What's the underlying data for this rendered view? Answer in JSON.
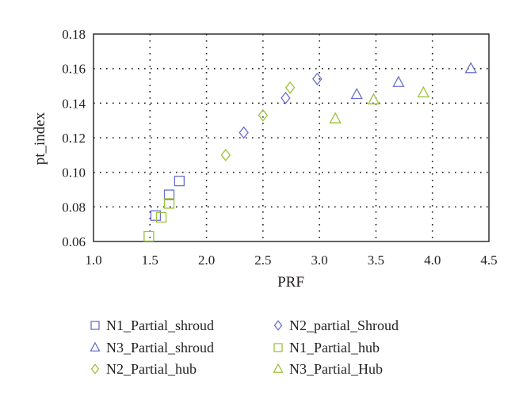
{
  "chart_data": {
    "type": "scatter",
    "xlabel": "PRF",
    "ylabel": "pt_index",
    "xlim": [
      1.0,
      4.5
    ],
    "ylim": [
      0.06,
      0.18
    ],
    "x_ticks": [
      "1.0",
      "1.5",
      "2.0",
      "2.5",
      "3.0",
      "3.5",
      "4.0",
      "4.5"
    ],
    "y_ticks": [
      "0.06",
      "0.08",
      "0.10",
      "0.12",
      "0.14",
      "0.16",
      "0.18"
    ],
    "grid": true,
    "legend_position": "bottom",
    "series": [
      {
        "name": "N1_Partial_shroud",
        "marker": "square",
        "color": "#6a6ecf",
        "points": [
          [
            1.55,
            0.075
          ],
          [
            1.67,
            0.087
          ],
          [
            1.76,
            0.095
          ]
        ]
      },
      {
        "name": "N2_partial_Shroud",
        "marker": "diamond",
        "color": "#6a6ecf",
        "points": [
          [
            2.33,
            0.123
          ],
          [
            2.7,
            0.143
          ],
          [
            2.98,
            0.154
          ]
        ]
      },
      {
        "name": "N3_Partial_shroud",
        "marker": "triangle",
        "color": "#6a6ecf",
        "points": [
          [
            3.33,
            0.145
          ],
          [
            3.7,
            0.152
          ],
          [
            4.34,
            0.16
          ]
        ]
      },
      {
        "name": "N1_Partial_hub",
        "marker": "square",
        "color": "#9cc23a",
        "points": [
          [
            1.49,
            0.063
          ],
          [
            1.6,
            0.074
          ],
          [
            1.67,
            0.082
          ]
        ]
      },
      {
        "name": "N2_Partial_hub",
        "marker": "diamond",
        "color": "#9cc23a",
        "points": [
          [
            2.17,
            0.11
          ],
          [
            2.5,
            0.133
          ],
          [
            2.74,
            0.149
          ]
        ]
      },
      {
        "name": "N3_Partial_Hub",
        "marker": "triangle",
        "color": "#9cc23a",
        "points": [
          [
            3.14,
            0.131
          ],
          [
            3.48,
            0.142
          ],
          [
            3.92,
            0.146
          ]
        ]
      }
    ]
  }
}
